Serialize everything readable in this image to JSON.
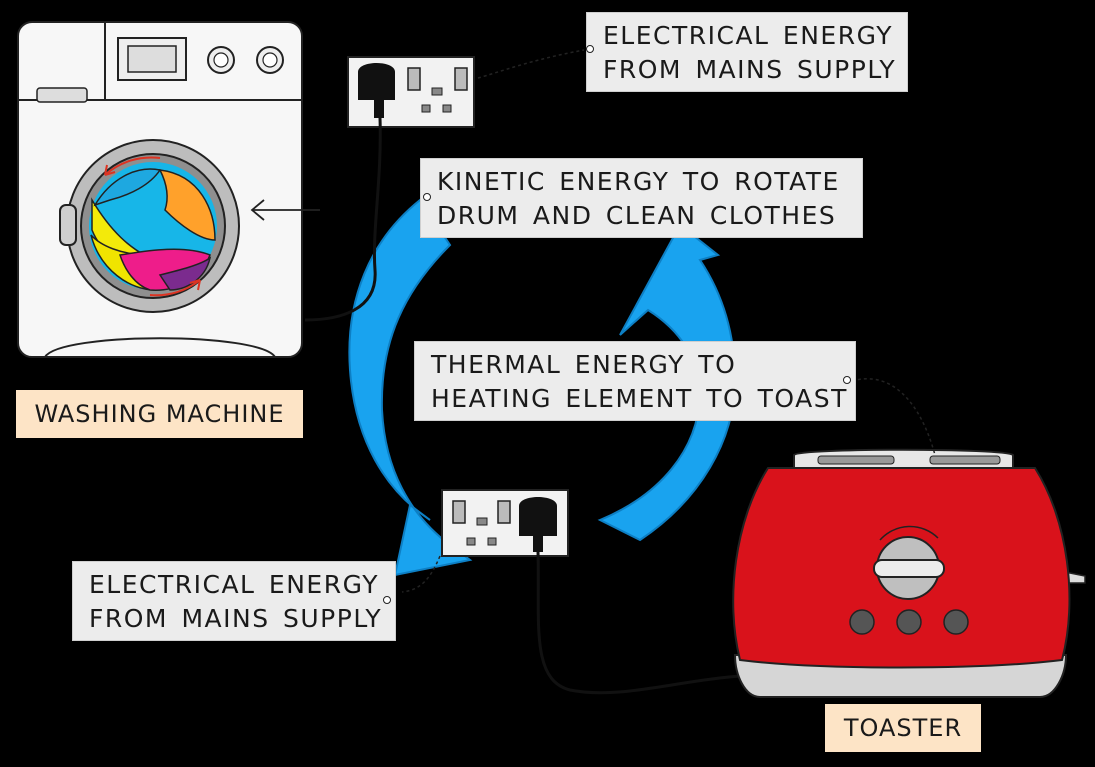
{
  "labels": {
    "electrical_top": {
      "line1": "ELECTRICAL ENERGY",
      "line2": "FROM MAINS SUPPLY"
    },
    "kinetic": {
      "line1": "KINETIC ENERGY TO ROTATE",
      "line2": "DRUM AND CLEAN CLOTHES"
    },
    "thermal": {
      "line1": "THERMAL ENERGY TO",
      "line2": "HEATING ELEMENT TO TOAST"
    },
    "electrical_bottom": {
      "line1": "ELECTRICAL ENERGY",
      "line2": "FROM MAINS SUPPLY"
    }
  },
  "titles": {
    "washing_machine": "WASHING MACHINE",
    "toaster": "TOASTER"
  },
  "colors": {
    "cycle_arrow": "#19a3ef",
    "toaster_body": "#d9121b",
    "title_background": "#fde4c6",
    "label_background": "#ececec"
  }
}
